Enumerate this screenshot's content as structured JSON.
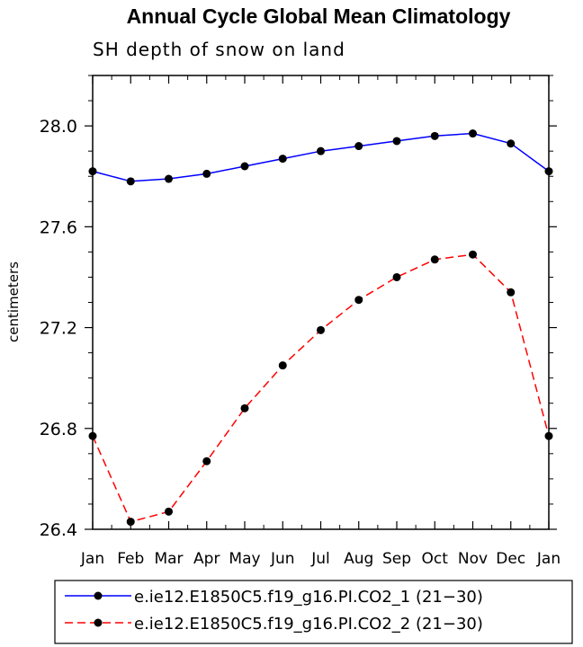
{
  "chart_data": {
    "type": "line",
    "title": "Annual Cycle Global Mean Climatology",
    "subtitle": "SH depth of snow on land",
    "xlabel": "",
    "ylabel": "centimeters",
    "categories": [
      "Jan",
      "Feb",
      "Mar",
      "Apr",
      "May",
      "Jun",
      "Jul",
      "Aug",
      "Sep",
      "Oct",
      "Nov",
      "Dec",
      "Jan"
    ],
    "ylim": [
      26.4,
      28.2
    ],
    "yticks": [
      "26.4",
      "26.8",
      "27.2",
      "27.6",
      "28.0"
    ],
    "grid": false,
    "legend_position": "bottom",
    "series": [
      {
        "name": "e.ie12.E1850C5.f19_g16.PI.CO2_1 (21−30)",
        "color": "#0000ff",
        "line_style": "solid",
        "values": [
          27.82,
          27.78,
          27.79,
          27.81,
          27.84,
          27.87,
          27.9,
          27.92,
          27.94,
          27.96,
          27.97,
          27.93,
          27.82
        ]
      },
      {
        "name": "e.ie12.E1850C5.f19_g16.PI.CO2_2 (21−30)",
        "color": "#ff0000",
        "line_style": "dashed",
        "values": [
          26.77,
          26.43,
          26.47,
          26.67,
          26.88,
          27.05,
          27.19,
          27.31,
          27.4,
          27.47,
          27.49,
          27.34,
          26.77
        ]
      }
    ]
  }
}
